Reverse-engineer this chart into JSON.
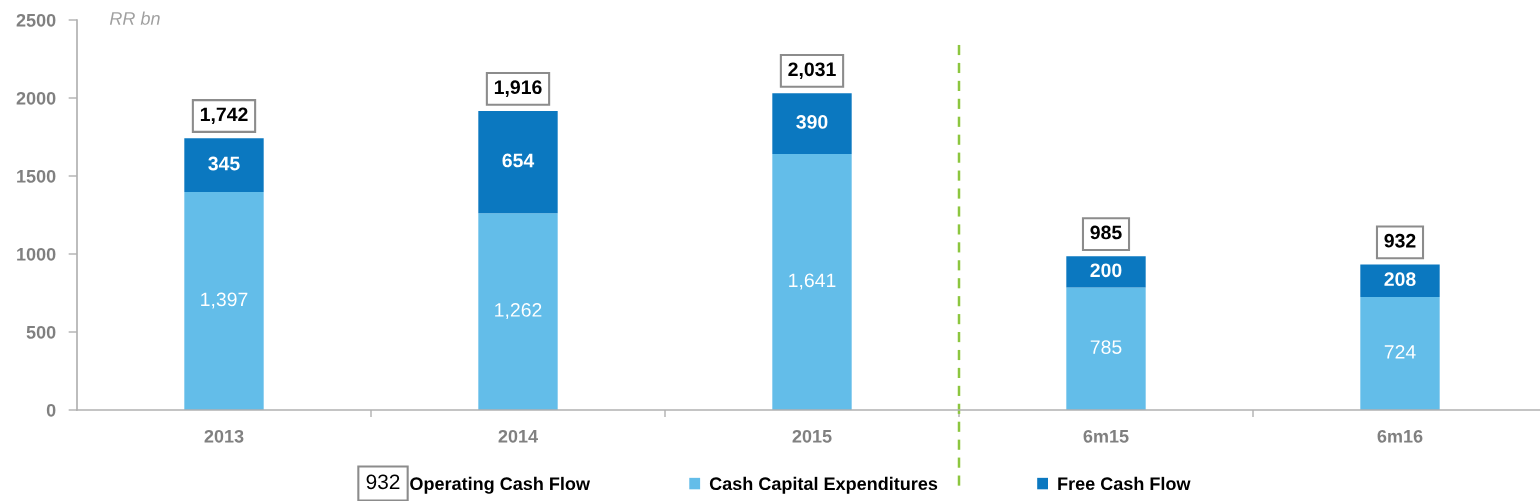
{
  "chart_data": {
    "type": "bar",
    "stacked": true,
    "ylabel": "RR bn",
    "categories": [
      "2013",
      "2014",
      "2015",
      "6m15",
      "6m16"
    ],
    "series": [
      {
        "name": "Cash Capital Expenditures",
        "color": "#63bde9",
        "values": [
          1397,
          1262,
          1641,
          785,
          724
        ],
        "value_labels": [
          "1,397",
          "1,262",
          "1,641",
          "785",
          "724"
        ]
      },
      {
        "name": "Free Cash Flow",
        "color": "#0b78c0",
        "values": [
          345,
          654,
          390,
          200,
          208
        ],
        "value_labels": [
          "345",
          "654",
          "390",
          "200",
          "208"
        ]
      }
    ],
    "totals": [
      "1,742",
      "1,916",
      "2,031",
      "985",
      "932"
    ],
    "ylim": [
      0,
      2500
    ],
    "yticks": [
      0,
      500,
      1000,
      1500,
      2000,
      2500
    ],
    "legend": "bottom",
    "annotations": [
      "Operating Cash Flow"
    ]
  }
}
